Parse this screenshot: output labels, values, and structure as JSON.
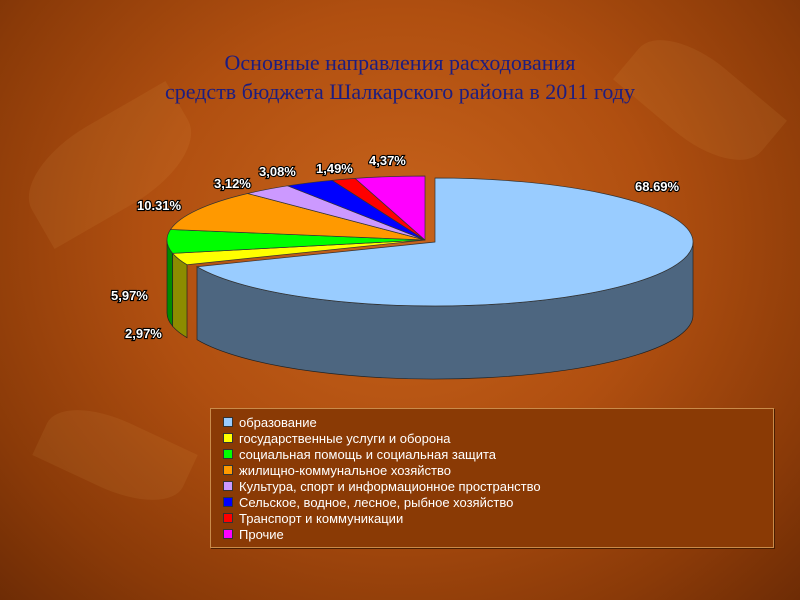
{
  "title_line1": "Основные направления расходования",
  "title_line2": "средств бюджета Шалкарского района в 2011 году",
  "chart_data": {
    "type": "pie",
    "title": "Основные направления расходования средств бюджета Шалкарского района в 2011 году",
    "legend_position": "bottom",
    "categories": [
      "образование",
      "государственные услуги и оборона",
      "социальная помощь и социальная защита",
      "жилищно-коммунальное хозяйство",
      "Культура, спорт и информационное пространство",
      "Сельское, водное, лесное, рыбное хозяйство",
      "Транспорт и коммуникации",
      "Прочие"
    ],
    "values": [
      68.69,
      2.97,
      5.97,
      10.31,
      3.12,
      3.08,
      1.49,
      4.37
    ],
    "labels": [
      "68.69%",
      "2,97%",
      "5,97%",
      "10.31%",
      "3,12%",
      "3,08%",
      "1,49%",
      "4,37%"
    ],
    "colors": [
      "#99ccff",
      "#ffff00",
      "#00ff00",
      "#ff9900",
      "#cc99ff",
      "#0000ff",
      "#ff0000",
      "#ff00ff"
    ],
    "exploded_slice": "образование"
  }
}
